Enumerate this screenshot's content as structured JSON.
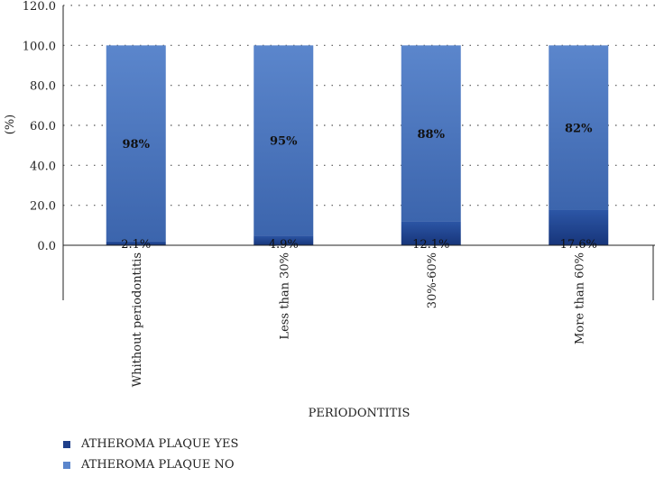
{
  "chart_data": {
    "type": "bar",
    "stacked": true,
    "percent": true,
    "categories": [
      "Whithout periodontitis",
      "Less than 30%",
      "30%-60%",
      "More than 60%"
    ],
    "series": [
      {
        "name": "ATHEROMA PLAQUE YES",
        "values": [
          2.1,
          4.9,
          12.1,
          17.6
        ],
        "color": "#1f3f8a",
        "labels": [
          "2.1%",
          "4.9%",
          "12.1%",
          "17.6%"
        ]
      },
      {
        "name": "ATHEROMA PLAQUE NO",
        "values": [
          97.9,
          95.1,
          87.9,
          82.4
        ],
        "color": "#5b86cc",
        "labels": [
          "98%",
          "95%",
          "88%",
          "82%"
        ]
      }
    ],
    "xlabel": "PERIODONTITIS",
    "ylabel": "(%)",
    "ylim": [
      0,
      120
    ],
    "yticks": [
      "0.0",
      "20.0",
      "40.0",
      "60.0",
      "80.0",
      "100.0",
      "120.0"
    ],
    "grid": true,
    "legend_position": "bottom-left"
  }
}
